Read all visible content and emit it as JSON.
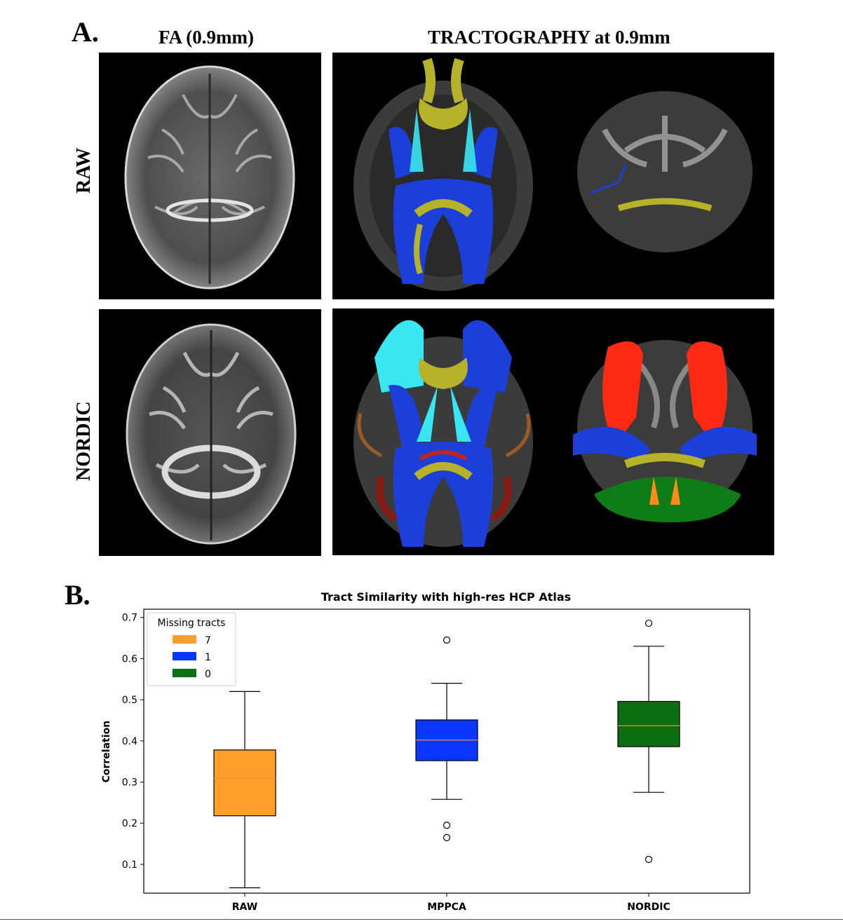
{
  "panel_a": {
    "letter": "A.",
    "col_fa": "FA (0.9mm)",
    "col_tract": "TRACTOGRAPHY at 0.9mm",
    "row_raw": "RAW",
    "row_nordic": "NORDIC"
  },
  "panel_b": {
    "letter": "B."
  },
  "colors": {
    "orange": "#ff9f2a",
    "blue": "#0a37ff",
    "green": "#0c6e12",
    "median": "#f08a3c",
    "tract_yellow": "#b6b22a",
    "tract_blue": "#1b3fd8",
    "tract_cyan": "#39e6f2",
    "tract_red": "#ff2a14",
    "tract_green": "#0f7d17"
  },
  "chart_data": {
    "type": "box",
    "title": "Tract Similarity with high-res HCP Atlas",
    "ylabel": "Correlation",
    "ylim": [
      0.03,
      0.72
    ],
    "yticks": [
      "0.1",
      "0.2",
      "0.3",
      "0.4",
      "0.5",
      "0.6",
      "0.7"
    ],
    "categories": [
      "RAW",
      "MPPCA",
      "NORDIC"
    ],
    "boxes": [
      {
        "category": "RAW",
        "whislo": 0.043,
        "q1": 0.218,
        "median": 0.31,
        "q3": 0.378,
        "whishi": 0.52,
        "outliers": [],
        "color": "#ff9f2a"
      },
      {
        "category": "MPPCA",
        "whislo": 0.258,
        "q1": 0.352,
        "median": 0.402,
        "q3": 0.451,
        "whishi": 0.54,
        "outliers": [
          0.645,
          0.195,
          0.165
        ],
        "color": "#0a37ff"
      },
      {
        "category": "NORDIC",
        "whislo": 0.275,
        "q1": 0.386,
        "median": 0.437,
        "q3": 0.496,
        "whishi": 0.63,
        "outliers": [
          0.686,
          0.112
        ],
        "color": "#0c6e12"
      }
    ],
    "legend": {
      "title": "Missing tracts",
      "placement": "top-left",
      "entries": [
        {
          "label": "7",
          "color": "#ff9f2a"
        },
        {
          "label": "1",
          "color": "#0a37ff"
        },
        {
          "label": "0",
          "color": "#0c6e12"
        }
      ]
    }
  }
}
